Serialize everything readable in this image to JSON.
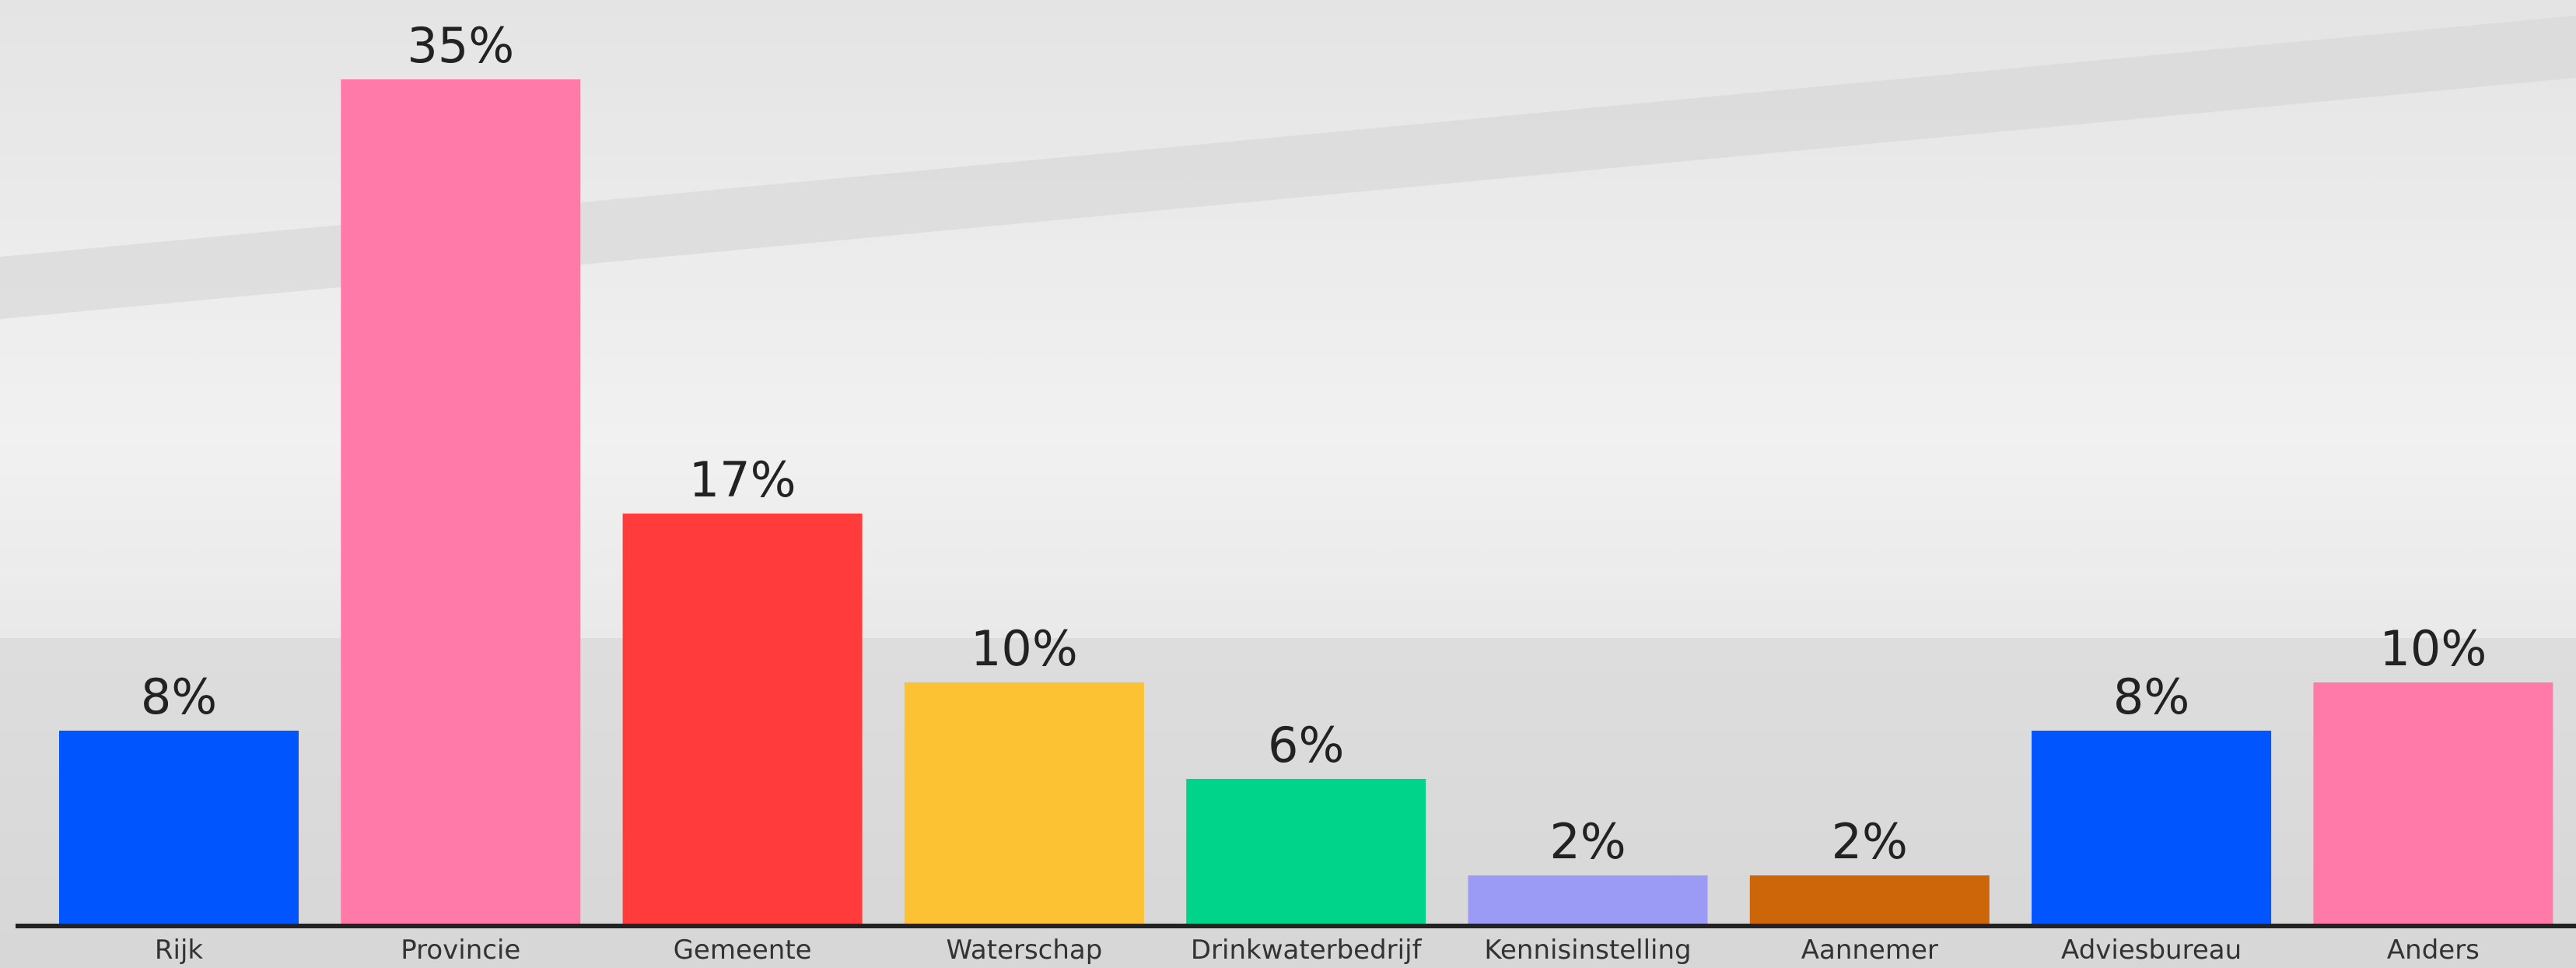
{
  "chart_data": {
    "type": "bar",
    "categories": [
      "Rijk",
      "Provincie",
      "Gemeente",
      "Waterschap",
      "Drinkwaterbedrijf",
      "Kennisinstelling",
      "Aannemer",
      "Adviesbureau",
      "Anders"
    ],
    "values": [
      8,
      35,
      17,
      10,
      6,
      2,
      2,
      8,
      10
    ],
    "value_labels": [
      "8%",
      "35%",
      "17%",
      "10%",
      "6%",
      "2%",
      "2%",
      "8%",
      "10%"
    ],
    "colors": [
      "#0055ff",
      "#ff7aa8",
      "#ff3b3b",
      "#fdc233",
      "#00d48a",
      "#9b9bf5",
      "#cc6608",
      "#0055ff",
      "#ff7aa8"
    ]
  }
}
